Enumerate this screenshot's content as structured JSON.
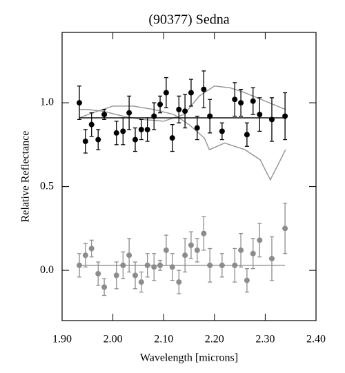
{
  "chart_data": {
    "type": "scatter",
    "title": "(90377) Sedna",
    "xlabel": "Wavelength [microns]",
    "ylabel": "Relative Reflectance",
    "xlim": [
      1.9,
      2.4
    ],
    "ylim": [
      -0.3,
      1.42
    ],
    "xticks": [
      {
        "value": 1.9,
        "label": "1.90"
      },
      {
        "value": 2.0,
        "label": "2.00"
      },
      {
        "value": 2.1,
        "label": "2.10"
      },
      {
        "value": 2.2,
        "label": "2.20"
      },
      {
        "value": 2.3,
        "label": "2.30"
      },
      {
        "value": 2.4,
        "label": "2.40"
      }
    ],
    "yticks": [
      {
        "value": 0,
        "label": "0.0"
      },
      {
        "value": 0.5,
        "label": "0.5"
      },
      {
        "value": 1,
        "label": "1.0"
      }
    ],
    "series": [
      {
        "color": "#000000",
        "x": [
          1.934,
          1.946,
          1.958,
          1.971,
          1.983,
          2.007,
          2.02,
          2.032,
          2.044,
          2.056,
          2.068,
          2.081,
          2.093,
          2.105,
          2.117,
          2.13,
          2.142,
          2.154,
          2.166,
          2.179,
          2.191,
          2.215,
          2.24,
          2.252,
          2.264,
          2.276,
          2.289,
          2.313,
          2.339
        ],
        "values": [
          1.0,
          0.77,
          0.87,
          0.78,
          0.93,
          0.82,
          0.83,
          0.94,
          0.78,
          0.84,
          0.84,
          0.92,
          0.99,
          1.06,
          0.79,
          0.96,
          0.95,
          1.06,
          0.85,
          1.08,
          0.92,
          0.83,
          1.02,
          1.0,
          0.81,
          1.01,
          0.93,
          0.9,
          0.92
        ],
        "errors": [
          0.1,
          0.07,
          0.07,
          0.06,
          0.03,
          0.07,
          0.08,
          0.1,
          0.07,
          0.06,
          0.07,
          0.08,
          0.05,
          0.09,
          0.08,
          0.08,
          0.1,
          0.08,
          0.07,
          0.11,
          0.1,
          0.05,
          0.1,
          0.08,
          0.07,
          0.08,
          0.1,
          0.13,
          0.14
        ],
        "fit": 0.91
      },
      {
        "color": "#8c8c8c",
        "x": [
          1.934,
          1.946,
          1.958,
          1.971,
          1.983,
          2.007,
          2.02,
          2.032,
          2.044,
          2.056,
          2.068,
          2.081,
          2.093,
          2.105,
          2.117,
          2.13,
          2.142,
          2.154,
          2.166,
          2.179,
          2.191,
          2.215,
          2.24,
          2.252,
          2.264,
          2.276,
          2.289,
          2.313,
          2.339
        ],
        "values": [
          0.03,
          0.09,
          0.13,
          -0.02,
          -0.1,
          -0.03,
          0.03,
          0.09,
          -0.03,
          -0.07,
          0.03,
          0.02,
          0.03,
          0.12,
          0.02,
          -0.07,
          0.09,
          0.15,
          0.12,
          0.22,
          0.03,
          0.03,
          0.03,
          0.12,
          -0.06,
          0.1,
          0.18,
          0.07,
          0.25
        ],
        "errors": [
          0.07,
          0.07,
          0.05,
          0.07,
          0.05,
          0.08,
          0.08,
          0.1,
          0.08,
          0.06,
          0.07,
          0.08,
          0.03,
          0.09,
          0.08,
          0.07,
          0.1,
          0.08,
          0.07,
          0.1,
          0.1,
          0.07,
          0.1,
          0.1,
          0.07,
          0.09,
          0.1,
          0.13,
          0.15
        ],
        "fit": 0.03
      }
    ],
    "curves": [
      {
        "color": "#999999",
        "x": [
          1.934,
          1.95,
          1.98,
          2.02,
          2.06,
          2.1,
          2.14,
          2.17,
          2.2,
          2.23,
          2.26,
          2.3,
          2.34
        ],
        "values": [
          0.96,
          0.96,
          0.95,
          0.92,
          0.9,
          0.89,
          0.93,
          1.04,
          1.1,
          1.09,
          1.06,
          1.01,
          0.96
        ]
      },
      {
        "color": "#999999",
        "x": [
          1.934,
          1.96,
          2.0,
          2.04,
          2.08,
          2.12,
          2.15,
          2.18,
          2.19,
          2.22,
          2.26,
          2.29,
          2.31,
          2.34
        ],
        "values": [
          0.91,
          0.94,
          0.98,
          0.98,
          0.96,
          0.93,
          0.87,
          0.79,
          0.72,
          0.76,
          0.72,
          0.66,
          0.54,
          0.72
        ]
      }
    ]
  }
}
